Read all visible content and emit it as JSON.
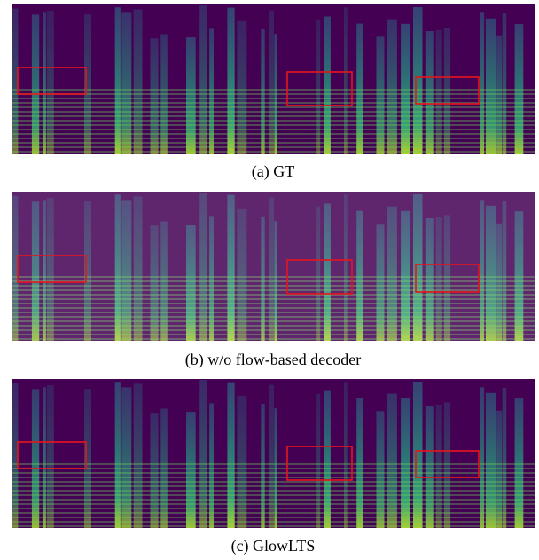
{
  "figures": [
    {
      "caption": "(a) GT"
    },
    {
      "caption": "(b) w/o flow-based decoder"
    },
    {
      "caption": "(c) GlowLTS"
    }
  ]
}
